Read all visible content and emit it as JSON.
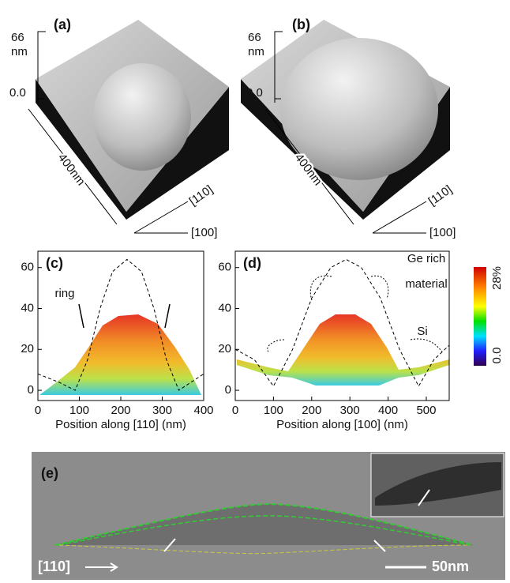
{
  "panels": {
    "a": {
      "label": "(a)",
      "z_max": "66",
      "z_unit": "nm",
      "z_min": "0.0",
      "length": "400nm",
      "dir1": "[110]",
      "dir2": "[100]"
    },
    "b": {
      "label": "(b)",
      "z_max": "66",
      "z_unit": "nm",
      "z_min": "0.0",
      "length": "400nm",
      "dir1": "[110]",
      "dir2": "[100]"
    },
    "e": {
      "label": "(e)",
      "direction": "[110]",
      "scale": "50nm"
    },
    "colorbar": {
      "max": "28%",
      "min": "0.0"
    }
  },
  "chart_data": [
    {
      "type": "line",
      "label": "(c)",
      "xlabel": "Position along [110] (nm)",
      "x": [
        0,
        50,
        90,
        120,
        150,
        180,
        215,
        250,
        280,
        310,
        340,
        400
      ],
      "values": [
        8,
        4,
        0,
        15,
        40,
        58,
        64,
        58,
        40,
        15,
        0,
        8
      ],
      "color": "#000",
      "xlim": [
        0,
        400
      ],
      "xticks": [
        0,
        100,
        200,
        300,
        400
      ],
      "ylim": [
        -5,
        68
      ],
      "yticks": [
        0,
        20,
        40,
        60
      ],
      "annotations": [
        "ring"
      ]
    },
    {
      "type": "line",
      "label": "(d)",
      "xlabel": "Position along [100] (nm)",
      "x": [
        0,
        50,
        100,
        150,
        200,
        250,
        290,
        330,
        380,
        430,
        480,
        520,
        560
      ],
      "values": [
        20,
        15,
        2,
        20,
        45,
        60,
        64,
        60,
        45,
        20,
        2,
        15,
        22
      ],
      "color": "#000",
      "xlim": [
        0,
        560
      ],
      "xticks": [
        0,
        100,
        200,
        300,
        400,
        500
      ],
      "ylim": [
        -5,
        68
      ],
      "yticks": [
        0,
        20,
        40,
        60
      ],
      "annotations": [
        "Ge rich",
        "material",
        "Si"
      ]
    }
  ]
}
